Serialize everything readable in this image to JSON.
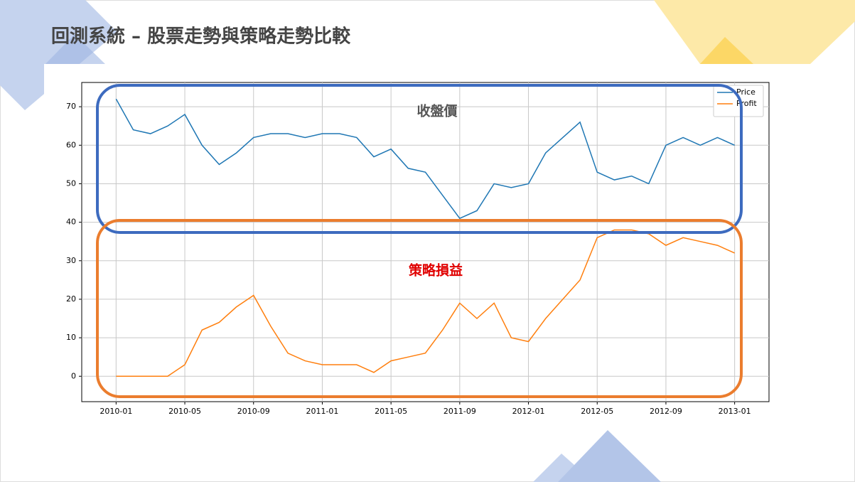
{
  "title": "回測系統 – 股票走勢與策略走勢比較",
  "chart_data": {
    "type": "line",
    "annotations": [
      "收盤價",
      "策略損益"
    ],
    "x": [
      "2010-01",
      "2010-02",
      "2010-03",
      "2010-04",
      "2010-05",
      "2010-06",
      "2010-07",
      "2010-08",
      "2010-09",
      "2010-10",
      "2010-11",
      "2010-12",
      "2011-01",
      "2011-02",
      "2011-03",
      "2011-04",
      "2011-05",
      "2011-06",
      "2011-07",
      "2011-08",
      "2011-09",
      "2011-10",
      "2011-11",
      "2011-12",
      "2012-01",
      "2012-02",
      "2012-03",
      "2012-04",
      "2012-05",
      "2012-06",
      "2012-07",
      "2012-08",
      "2012-09",
      "2012-10",
      "2012-11",
      "2012-12",
      "2013-01"
    ],
    "series": [
      {
        "name": "Price",
        "color": "#1f77b4",
        "values": [
          72,
          64,
          63,
          65,
          68,
          60,
          55,
          58,
          62,
          63,
          63,
          62,
          63,
          63,
          62,
          57,
          59,
          54,
          53,
          47,
          41,
          43,
          50,
          49,
          50,
          58,
          62,
          66,
          53,
          51,
          52,
          50,
          60,
          62,
          60,
          62,
          60
        ]
      },
      {
        "name": "Profit",
        "color": "#ff7f0e",
        "values": [
          0,
          0,
          0,
          0,
          3,
          12,
          14,
          18,
          21,
          13,
          6,
          4,
          3,
          3,
          3,
          1,
          4,
          5,
          6,
          12,
          19,
          15,
          19,
          10,
          9,
          15,
          20,
          25,
          36,
          38,
          38,
          37,
          34,
          36,
          35,
          34,
          32
        ]
      }
    ],
    "xlim": [
      "2009-11",
      "2013-03"
    ],
    "xticks": [
      "2010-01",
      "2010-05",
      "2010-09",
      "2011-01",
      "2011-05",
      "2011-09",
      "2012-01",
      "2012-05",
      "2012-09",
      "2013-01"
    ],
    "ylim": [
      -6.6,
      76.3
    ],
    "yticks": [
      0,
      10,
      20,
      30,
      40,
      50,
      60,
      70
    ],
    "grid": true,
    "legend": "upper right"
  }
}
